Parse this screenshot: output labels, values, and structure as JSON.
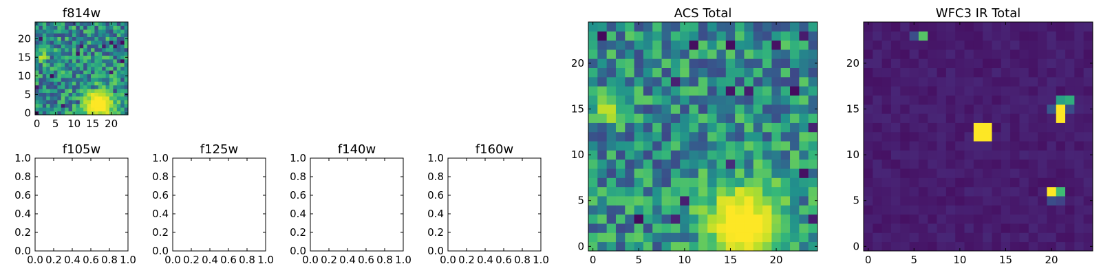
{
  "chart_data": [
    {
      "type": "heatmap",
      "title": "f814w",
      "colormap": "viridis",
      "x_ticks": [
        "0",
        "5",
        "10",
        "15",
        "20"
      ],
      "y_ticks": [
        "0",
        "5",
        "10",
        "15",
        "20"
      ],
      "xlim": [
        -0.5,
        24.5
      ],
      "ylim": [
        -0.5,
        24.5
      ],
      "grid_size": [
        25,
        25
      ],
      "background_level": 0.5,
      "features": [
        {
          "type": "blob",
          "x": 16.5,
          "y": 2.5,
          "sigma": 3.2,
          "value": 1.0
        },
        {
          "type": "blob",
          "x": 1.5,
          "y": 15.0,
          "sigma": 1.0,
          "value": 0.85
        }
      ]
    },
    {
      "type": "heatmap",
      "title": "f105w",
      "x_ticks": [
        "0.0",
        "0.2",
        "0.4",
        "0.6",
        "0.8",
        "1.0"
      ],
      "y_ticks": [
        "0.0",
        "0.2",
        "0.4",
        "0.6",
        "0.8",
        "1.0"
      ],
      "xlim": [
        0,
        1
      ],
      "ylim": [
        0,
        1
      ],
      "empty": true
    },
    {
      "type": "heatmap",
      "title": "f125w",
      "x_ticks": [
        "0.0",
        "0.2",
        "0.4",
        "0.6",
        "0.8",
        "1.0"
      ],
      "y_ticks": [
        "0.0",
        "0.2",
        "0.4",
        "0.6",
        "0.8",
        "1.0"
      ],
      "xlim": [
        0,
        1
      ],
      "ylim": [
        0,
        1
      ],
      "empty": true
    },
    {
      "type": "heatmap",
      "title": "f140w",
      "x_ticks": [
        "0.0",
        "0.2",
        "0.4",
        "0.6",
        "0.8",
        "1.0"
      ],
      "y_ticks": [
        "0.0",
        "0.2",
        "0.4",
        "0.6",
        "0.8",
        "1.0"
      ],
      "xlim": [
        0,
        1
      ],
      "ylim": [
        0,
        1
      ],
      "empty": true
    },
    {
      "type": "heatmap",
      "title": "f160w",
      "x_ticks": [
        "0.0",
        "0.2",
        "0.4",
        "0.6",
        "0.8",
        "1.0"
      ],
      "y_ticks": [
        "0.0",
        "0.2",
        "0.4",
        "0.6",
        "0.8",
        "1.0"
      ],
      "xlim": [
        0,
        1
      ],
      "ylim": [
        0,
        1
      ],
      "empty": true
    },
    {
      "type": "heatmap",
      "title": "ACS Total",
      "colormap": "viridis",
      "x_ticks": [
        "0",
        "5",
        "10",
        "15",
        "20"
      ],
      "y_ticks": [
        "0",
        "5",
        "10",
        "15",
        "20"
      ],
      "xlim": [
        -0.5,
        24.5
      ],
      "ylim": [
        -0.5,
        24.5
      ],
      "grid_size": [
        25,
        25
      ],
      "background_level": 0.5,
      "features": [
        {
          "type": "blob",
          "x": 16.5,
          "y": 2.5,
          "sigma": 3.2,
          "value": 1.0
        },
        {
          "type": "blob",
          "x": 1.5,
          "y": 15.0,
          "sigma": 1.0,
          "value": 0.85
        }
      ]
    },
    {
      "type": "heatmap",
      "title": "WFC3 IR Total",
      "colormap": "viridis",
      "x_ticks": [
        "0",
        "5",
        "10",
        "15",
        "20"
      ],
      "y_ticks": [
        "0",
        "5",
        "10",
        "15",
        "20"
      ],
      "xlim": [
        -0.5,
        24.5
      ],
      "ylim": [
        -0.5,
        24.5
      ],
      "grid_size": [
        25,
        25
      ],
      "background_level": 0.06,
      "features": [
        {
          "type": "pixel",
          "x": 12,
          "y": 13,
          "value": 1.0
        },
        {
          "type": "pixel",
          "x": 13,
          "y": 13,
          "value": 1.0
        },
        {
          "type": "pixel",
          "x": 12,
          "y": 12,
          "value": 1.0
        },
        {
          "type": "pixel",
          "x": 13,
          "y": 12,
          "value": 1.0
        },
        {
          "type": "pixel",
          "x": 21,
          "y": 15,
          "value": 1.0
        },
        {
          "type": "pixel",
          "x": 21,
          "y": 14,
          "value": 1.0
        },
        {
          "type": "pixel",
          "x": 21,
          "y": 16,
          "value": 0.55
        },
        {
          "type": "pixel",
          "x": 22,
          "y": 16,
          "value": 0.6
        },
        {
          "type": "pixel",
          "x": 20,
          "y": 15,
          "value": 0.35
        },
        {
          "type": "pixel",
          "x": 22,
          "y": 15,
          "value": 0.3
        },
        {
          "type": "pixel",
          "x": 20,
          "y": 6,
          "value": 1.0
        },
        {
          "type": "pixel",
          "x": 21,
          "y": 6,
          "value": 0.65
        },
        {
          "type": "pixel",
          "x": 20,
          "y": 5,
          "value": 0.3
        },
        {
          "type": "pixel",
          "x": 21,
          "y": 5,
          "value": 0.25
        },
        {
          "type": "pixel",
          "x": 6,
          "y": 23,
          "value": 0.7
        },
        {
          "type": "pixel",
          "x": 5,
          "y": 23,
          "value": 0.3
        }
      ]
    }
  ]
}
